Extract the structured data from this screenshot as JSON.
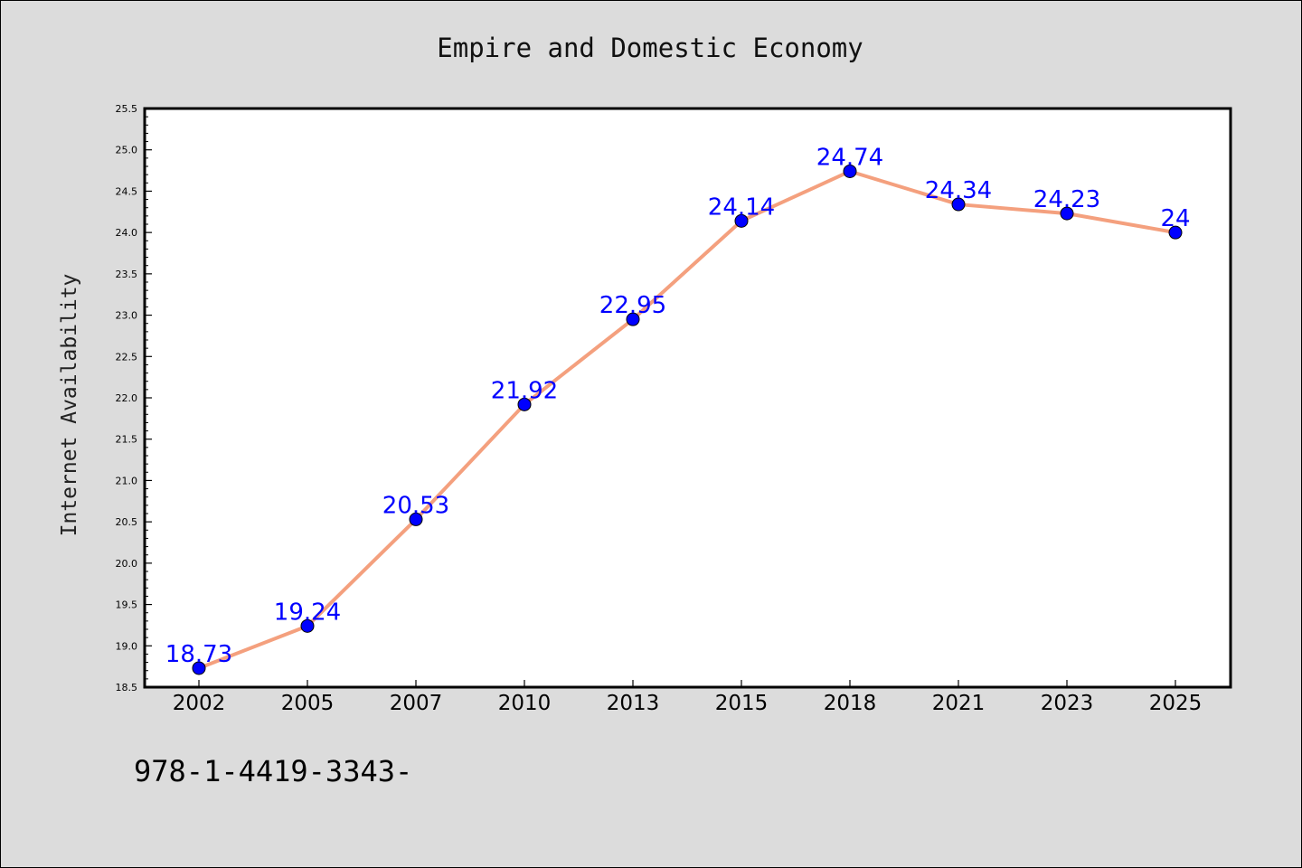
{
  "chart_data": {
    "type": "line",
    "title": "Empire and Domestic Economy",
    "xlabel": "",
    "ylabel": "Internet Availability",
    "categories": [
      "2002",
      "2005",
      "2007",
      "2010",
      "2013",
      "2015",
      "2018",
      "2021",
      "2023",
      "2025"
    ],
    "series": [
      {
        "values": [
          18.73,
          19.24,
          20.53,
          21.92,
          22.95,
          24.14,
          24.74,
          24.34,
          24.23,
          24
        ],
        "labels": [
          "18.73",
          "19.24",
          "20.53",
          "21.92",
          "22.95",
          "24.14",
          "24.74",
          "24.34",
          "24.23",
          "24"
        ],
        "line_color": "#f4a07e",
        "marker_color": "#0000ff"
      }
    ],
    "ylim": [
      18.5,
      25.5
    ],
    "yticks": [
      "18.5",
      "19.0",
      "19.5",
      "20.0",
      "20.5",
      "21.0",
      "21.5",
      "22.0",
      "22.5",
      "23.0",
      "23.5",
      "24.0",
      "24.5",
      "25.0",
      "25.5"
    ],
    "grid": false,
    "legend": "none"
  },
  "footer": {
    "text": "978-1-4419-3343-"
  },
  "colors": {
    "background": "#dcdcdc",
    "plot_background": "#ffffff",
    "line": "#f4a07e",
    "marker": "#0000ff",
    "data_label": "#0000ff"
  }
}
